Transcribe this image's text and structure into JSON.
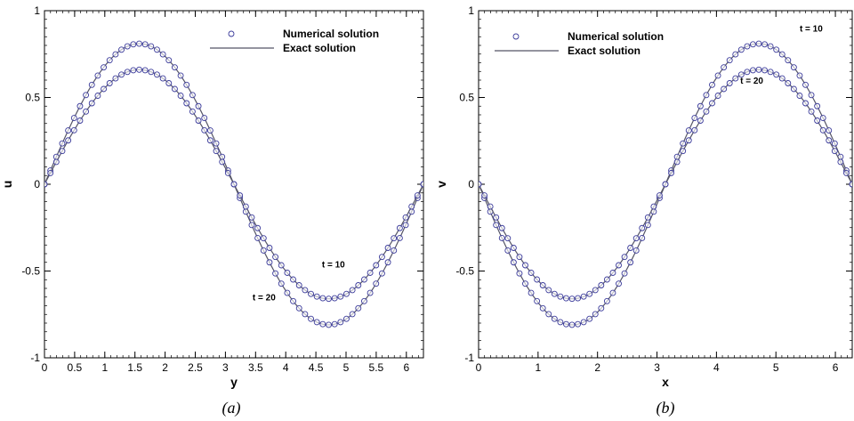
{
  "chart_data": [
    {
      "type": "line",
      "panel": "a",
      "caption": "(a)",
      "xlabel": "y",
      "ylabel": "u",
      "xlim": [
        0,
        6.2832
      ],
      "ylim": [
        -1,
        1
      ],
      "xticks": [
        0,
        0.5,
        1,
        1.5,
        2,
        2.5,
        3,
        3.5,
        4,
        4.5,
        5,
        5.5,
        6
      ],
      "xtick_labels": [
        "0",
        "0.5",
        "1",
        "1.5",
        "2",
        "2.5",
        "3",
        "3.5",
        "4",
        "4.5",
        "5",
        "5.5",
        "6"
      ],
      "yticks": [
        -1,
        -0.5,
        0,
        0.5,
        1
      ],
      "ytick_labels": [
        "-1",
        "-0.5",
        "0",
        "0.5",
        "1"
      ],
      "legend": {
        "placement": "top-right",
        "entries": [
          "Numerical solution",
          "Exact solution"
        ]
      },
      "function": "sin",
      "series": [
        {
          "t_label": "t = 10",
          "amplitude": 0.81
        },
        {
          "t_label": "t = 20",
          "amplitude": 0.66
        }
      ],
      "annotations": [
        {
          "text": "t = 10",
          "x": 4.6,
          "y": -0.48
        },
        {
          "text": "t = 20",
          "x": 3.45,
          "y": -0.67
        }
      ],
      "marker_count": 64
    },
    {
      "type": "line",
      "panel": "b",
      "caption": "(b)",
      "xlabel": "x",
      "ylabel": "v",
      "xlim": [
        0,
        6.2832
      ],
      "ylim": [
        -1,
        1
      ],
      "xticks": [
        0,
        1,
        2,
        3,
        4,
        5,
        6
      ],
      "xtick_labels": [
        "0",
        "1",
        "2",
        "3",
        "4",
        "5",
        "6"
      ],
      "yticks": [
        -1,
        -0.5,
        0,
        0.5,
        1
      ],
      "ytick_labels": [
        "-1",
        "-0.5",
        "0",
        "0.5",
        "1"
      ],
      "legend": {
        "placement": "top-left",
        "entries": [
          "Numerical solution",
          "Exact solution"
        ]
      },
      "function": "-sin",
      "series": [
        {
          "t_label": "t = 10",
          "amplitude": 0.81
        },
        {
          "t_label": "t = 20",
          "amplitude": 0.66
        }
      ],
      "annotations": [
        {
          "text": "t = 10",
          "x": 5.4,
          "y": 0.88
        },
        {
          "text": "t = 20",
          "x": 4.4,
          "y": 0.58
        }
      ],
      "marker_count": 64
    }
  ],
  "style": {
    "line_color": "#555566",
    "marker_color": "#3a3a9a",
    "axis_color": "#000000"
  }
}
